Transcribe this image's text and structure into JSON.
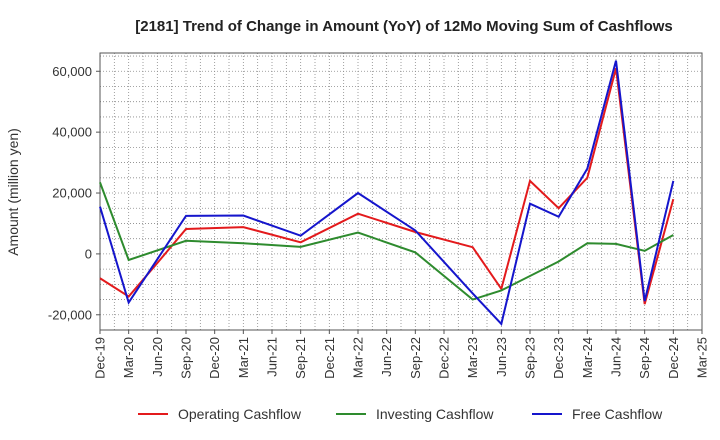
{
  "chart_data": {
    "type": "line",
    "title": "[2181]  Trend of Change in Amount (YoY) of 12Mo Moving Sum of Cashflows",
    "xlabel": "",
    "ylabel": "Amount (million yen)",
    "ylim": [
      -25000,
      66000
    ],
    "yticks": [
      -20000,
      0,
      20000,
      40000,
      60000
    ],
    "ytick_labels": [
      "-20,000",
      "0",
      "20,000",
      "40,000",
      "60,000"
    ],
    "categories": [
      "Dec-19",
      "Mar-20",
      "Jun-20",
      "Sep-20",
      "Dec-20",
      "Mar-21",
      "Jun-21",
      "Sep-21",
      "Dec-21",
      "Mar-22",
      "Jun-22",
      "Sep-22",
      "Dec-22",
      "Mar-23",
      "Jun-23",
      "Sep-23",
      "Dec-23",
      "Mar-24",
      "Jun-24",
      "Sep-24",
      "Dec-24",
      "Mar-25"
    ],
    "grid": true,
    "legend_position": "bottom",
    "series": [
      {
        "name": "Operating Cashflow",
        "color": "#e31a1c",
        "values": [
          -8000,
          -14000,
          -3000,
          8200,
          null,
          8800,
          null,
          3800,
          null,
          13200,
          null,
          7200,
          null,
          2200,
          -11500,
          24000,
          15000,
          25000,
          61000,
          -16500,
          18000,
          null
        ]
      },
      {
        "name": "Investing Cashflow",
        "color": "#2e8b2e",
        "values": [
          23500,
          -2000,
          null,
          4300,
          null,
          3500,
          null,
          2300,
          null,
          7000,
          null,
          500,
          null,
          -15000,
          -12000,
          null,
          -2500,
          3500,
          3300,
          1000,
          6200,
          null
        ]
      },
      {
        "name": "Free Cashflow",
        "color": "#1515cc",
        "values": [
          15500,
          -16000,
          null,
          12500,
          null,
          12600,
          null,
          6000,
          null,
          20000,
          null,
          7700,
          null,
          -13000,
          -23000,
          16500,
          12200,
          28000,
          63500,
          -15500,
          24000,
          null
        ]
      }
    ]
  }
}
